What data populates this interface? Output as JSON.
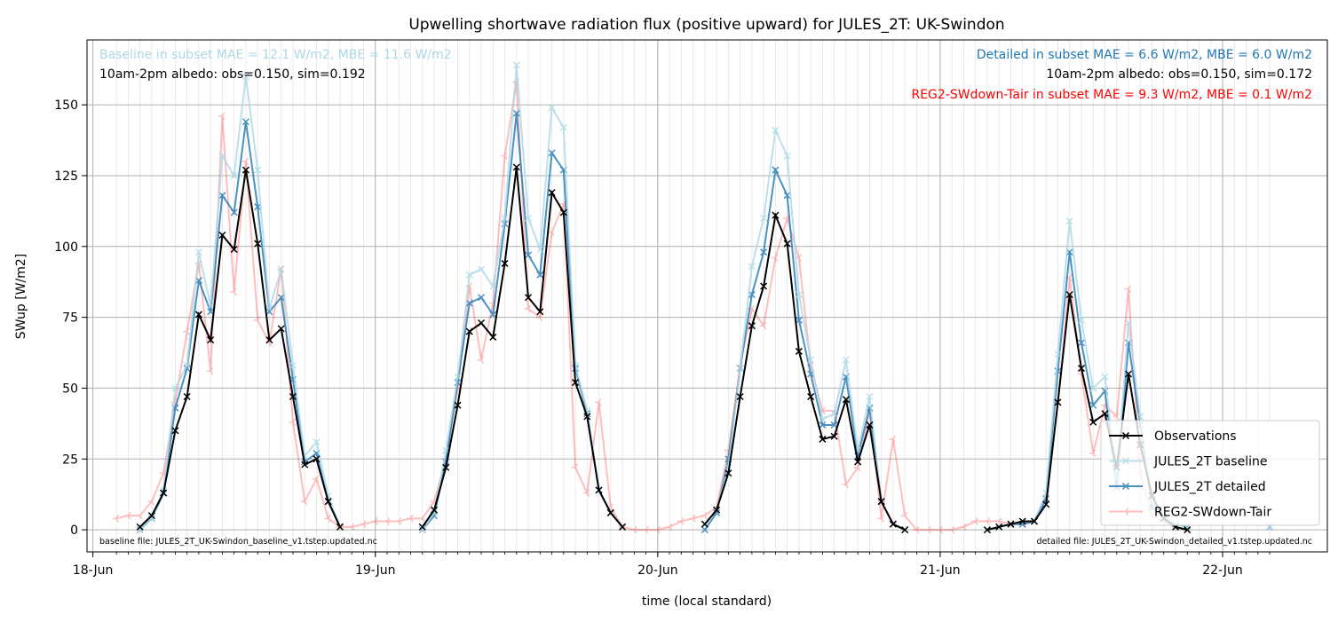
{
  "chart_data": {
    "type": "line",
    "title": "Upwelling shortwave radiation flux (positive upward) for JULES_2T: UK-Swindon",
    "x_label": "time (local standard)",
    "y_label": "SWup [W/m2]",
    "x": [
      2,
      3,
      4,
      5,
      6,
      7,
      8,
      9,
      10,
      11,
      12,
      13,
      14,
      15,
      16,
      17,
      18,
      19,
      20,
      21,
      22,
      23,
      24,
      25,
      26,
      27,
      28,
      29,
      30,
      31,
      32,
      33,
      34,
      35,
      36,
      37,
      38,
      39,
      40,
      41,
      42,
      43,
      44,
      45,
      46,
      47,
      48,
      49,
      50,
      51,
      52,
      53,
      54,
      55,
      56,
      57,
      58,
      59,
      60,
      61,
      62,
      63,
      64,
      65,
      66,
      67,
      68,
      69,
      70,
      71,
      72,
      73,
      74,
      75,
      76,
      77,
      78,
      79,
      80,
      81,
      82,
      83,
      84,
      85,
      86,
      87,
      88,
      89,
      90,
      91,
      92,
      93,
      94,
      95,
      96,
      97,
      98,
      99,
      100
    ],
    "series": [
      {
        "name": "Observations",
        "color": "#000000",
        "alpha": 1,
        "marker": "x",
        "values": [
          null,
          null,
          1,
          5,
          13,
          35,
          47,
          76,
          67,
          104,
          99,
          127,
          101,
          67,
          71,
          47,
          23,
          25,
          10,
          1,
          null,
          null,
          null,
          null,
          null,
          null,
          1,
          7,
          22,
          44,
          70,
          73,
          68,
          94,
          128,
          82,
          77,
          119,
          112,
          52,
          40,
          14,
          6,
          1,
          null,
          null,
          null,
          null,
          null,
          null,
          2,
          7,
          20,
          47,
          72,
          86,
          111,
          101,
          63,
          47,
          32,
          33,
          46,
          24,
          37,
          10,
          2,
          0,
          null,
          null,
          null,
          null,
          null,
          null,
          0,
          1,
          2,
          3,
          3,
          9,
          45,
          83,
          57,
          38,
          41,
          22,
          55,
          30,
          12,
          4,
          1,
          0,
          null,
          null,
          null,
          null,
          null,
          null,
          null
        ]
      },
      {
        "name": "JULES_2T baseline",
        "color": "#add8e6",
        "alpha": 0.8,
        "marker": "x",
        "values": [
          null,
          null,
          0,
          4,
          14,
          50,
          58,
          98,
          79,
          132,
          125,
          160,
          127,
          78,
          92,
          58,
          26,
          31,
          12,
          1,
          null,
          null,
          null,
          null,
          null,
          null,
          0,
          6,
          28,
          54,
          90,
          92,
          86,
          110,
          164,
          110,
          99,
          149,
          142,
          58,
          42,
          14,
          6,
          1,
          null,
          null,
          null,
          null,
          null,
          null,
          2,
          7,
          22,
          57,
          93,
          110,
          141,
          132,
          83,
          60,
          39,
          41,
          60,
          28,
          47,
          10,
          2,
          0,
          null,
          null,
          null,
          null,
          null,
          null,
          0,
          1,
          2,
          3,
          3,
          13,
          62,
          109,
          74,
          50,
          54,
          18,
          73,
          40,
          10,
          5,
          2,
          1,
          null,
          null,
          null,
          null,
          null,
          null,
          1
        ]
      },
      {
        "name": "JULES_2T detailed",
        "color": "#1f77b4",
        "alpha": 0.8,
        "marker": "x",
        "values": [
          null,
          null,
          0,
          4,
          13,
          43,
          57,
          88,
          77,
          118,
          112,
          144,
          114,
          77,
          82,
          53,
          24,
          27,
          10,
          1,
          null,
          null,
          null,
          null,
          null,
          null,
          0,
          5,
          24,
          52,
          80,
          82,
          76,
          108,
          147,
          97,
          90,
          133,
          127,
          57,
          41,
          14,
          6,
          1,
          null,
          null,
          null,
          null,
          null,
          null,
          0,
          6,
          25,
          57,
          83,
          98,
          127,
          118,
          74,
          55,
          37,
          37,
          54,
          26,
          43,
          10,
          2,
          0,
          null,
          null,
          null,
          null,
          null,
          null,
          0,
          1,
          2,
          2,
          3,
          11,
          56,
          98,
          66,
          44,
          49,
          15,
          66,
          37,
          8,
          4,
          2,
          1,
          null,
          null,
          null,
          null,
          null,
          null,
          1
        ]
      },
      {
        "name": "REG2-SWdown-Tair",
        "color": "#ff0000",
        "alpha": 0.25,
        "marker": "tri",
        "values": [
          4,
          5,
          5,
          10,
          20,
          45,
          70,
          94,
          56,
          146,
          84,
          130,
          74,
          66,
          92,
          38,
          10,
          18,
          4,
          1,
          1,
          2,
          3,
          3,
          3,
          4,
          4,
          10,
          25,
          50,
          86,
          60,
          80,
          132,
          158,
          78,
          75,
          105,
          115,
          22,
          13,
          45,
          8,
          1,
          0,
          0,
          0,
          1,
          3,
          4,
          5,
          8,
          28,
          58,
          78,
          72,
          96,
          110,
          96,
          58,
          42,
          42,
          16,
          22,
          42,
          4,
          32,
          5,
          0,
          0,
          0,
          0,
          1,
          3,
          3,
          3,
          2,
          2,
          3,
          12,
          45,
          89,
          55,
          27,
          44,
          40,
          85,
          20,
          5,
          3,
          1,
          0,
          null,
          null,
          null,
          null,
          null,
          null,
          null
        ]
      }
    ],
    "xlim": [
      -0.5,
      104.9
    ],
    "xticks": [
      {
        "value": 0,
        "label": "18-Jun"
      },
      {
        "value": 24,
        "label": "19-Jun"
      },
      {
        "value": 48,
        "label": "20-Jun"
      },
      {
        "value": 72,
        "label": "21-Jun"
      },
      {
        "value": 96,
        "label": "22-Jun"
      }
    ],
    "ylim": [
      -7.8,
      172.9
    ],
    "yticks": [
      0,
      25,
      50,
      75,
      100,
      125,
      150
    ],
    "grid": true,
    "legend": "lower right",
    "annotations": [
      {
        "text": "Baseline in subset MAE = 12.1 W/m2, MBE = 11.6 W/m2",
        "color": "#add8e6"
      },
      {
        "text": "10am-2pm albedo: obs=0.150, sim=0.192",
        "color": "#000000"
      },
      {
        "text": "Detailed in subset MAE = 6.6 W/m2, MBE = 6.0 W/m2",
        "color": "#1f77b4"
      },
      {
        "text": "10am-2pm albedo: obs=0.150, sim=0.172",
        "color": "#000000"
      },
      {
        "text": "REG2-SWdown-Tair in subset MAE = 9.3 W/m2, MBE = 0.1 W/m2",
        "color": "#ff0000"
      },
      {
        "text": "baseline file: JULES_2T_UK-Swindon_baseline_v1.tstep.updated.nc",
        "color": "#000000"
      },
      {
        "text": "detailed file: JULES_2T_UK-Swindon_detailed_v1.tstep.updated.nc",
        "color": "#000000"
      }
    ]
  }
}
